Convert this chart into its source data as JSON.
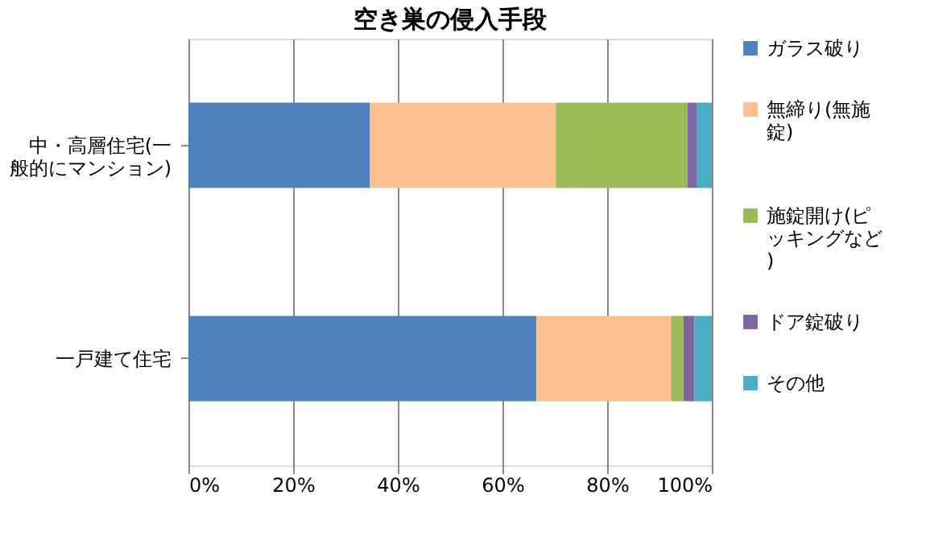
{
  "chart_data": {
    "type": "bar",
    "orientation": "horizontal",
    "stacked": true,
    "title": "空き巣の侵入手段",
    "categories": [
      "中・高層住宅(一般的にマンション)",
      "一戸建て住宅"
    ],
    "series": [
      {
        "name": "ガラス破り",
        "color": "#4f81bd",
        "values": [
          34.7,
          66.5
        ]
      },
      {
        "name": "無締り(無施錠)",
        "color": "#fac090",
        "values": [
          35.5,
          25.7
        ]
      },
      {
        "name": "施錠開け(ピッキングなど)",
        "color": "#9bbb59",
        "values": [
          25.2,
          2.4
        ]
      },
      {
        "name": "ドア錠破り",
        "color": "#8064a2",
        "values": [
          1.8,
          2.1
        ]
      },
      {
        "name": "その他",
        "color": "#4bacc6",
        "values": [
          2.8,
          3.3
        ]
      }
    ],
    "xlim": [
      0,
      100
    ],
    "xticks": [
      {
        "value": 0,
        "label": "0%"
      },
      {
        "value": 20,
        "label": "20%"
      },
      {
        "value": 40,
        "label": "40%"
      },
      {
        "value": 60,
        "label": "60%"
      },
      {
        "value": 80,
        "label": "80%"
      },
      {
        "value": 100,
        "label": "100%"
      }
    ],
    "grid": "x",
    "legend": "right"
  }
}
